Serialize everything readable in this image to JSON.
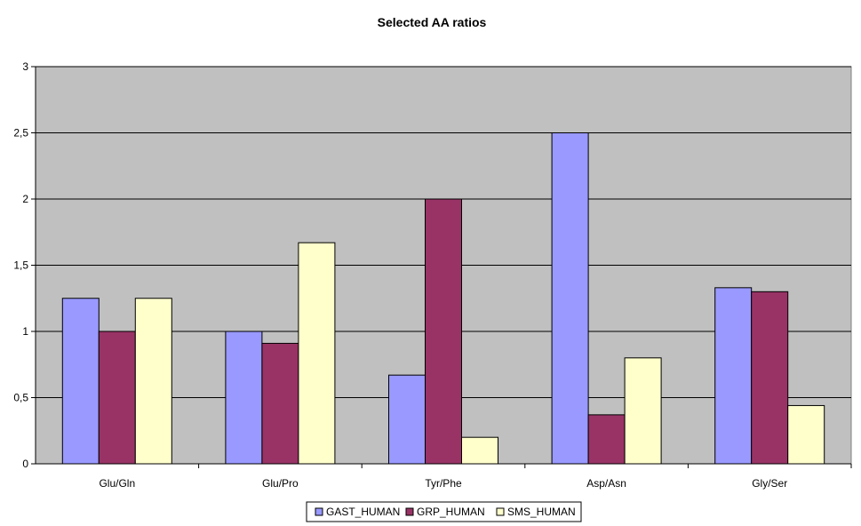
{
  "chart_data": {
    "type": "bar",
    "title": "Selected AA ratios",
    "xlabel": "",
    "ylabel": "",
    "categories": [
      "Glu/Gln",
      "Glu/Pro",
      "Tyr/Phe",
      "Asp/Asn",
      "Gly/Ser"
    ],
    "series": [
      {
        "name": "GAST_HUMAN",
        "color": "#9999ff",
        "values": [
          1.25,
          1.0,
          0.67,
          2.5,
          1.33
        ]
      },
      {
        "name": "GRP_HUMAN",
        "color": "#993366",
        "values": [
          1.0,
          0.91,
          2.0,
          0.37,
          1.3
        ]
      },
      {
        "name": "SMS_HUMAN",
        "color": "#ffffcc",
        "values": [
          1.25,
          1.67,
          0.2,
          0.8,
          0.44
        ]
      }
    ],
    "ylim": [
      0,
      3
    ],
    "yticks": [
      "0",
      "0,5",
      "1",
      "1,5",
      "2",
      "2,5",
      "3"
    ],
    "grid": true,
    "plot_background": "#c0c0c0",
    "legend_position": "bottom"
  }
}
